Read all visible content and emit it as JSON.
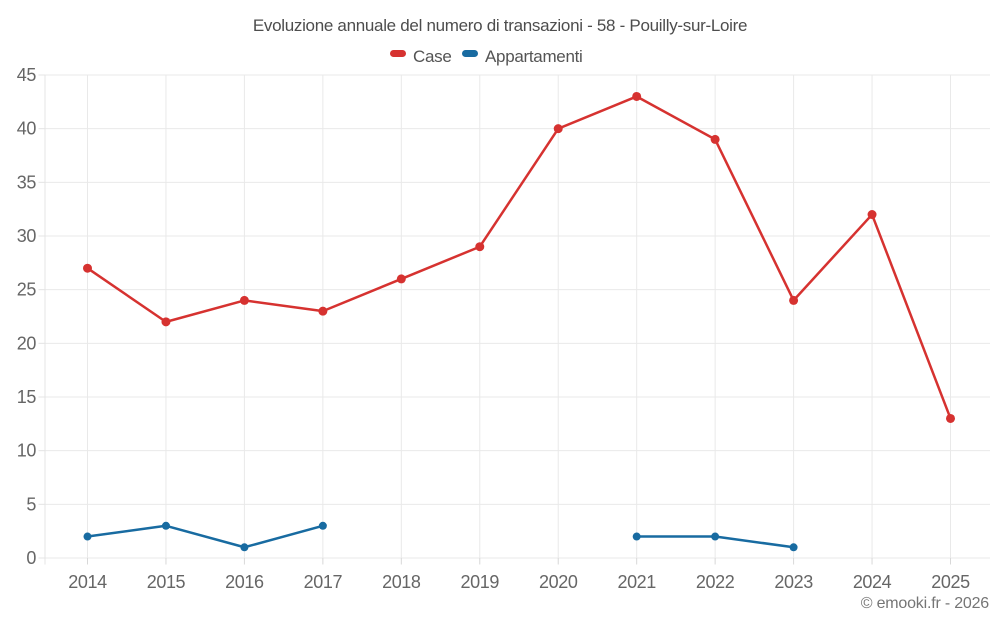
{
  "page": {
    "footer": "© emooki.fr - 2026"
  },
  "chart_data": {
    "type": "line",
    "title": "Evoluzione annuale del numero di transazioni - 58 - Pouilly-sur-Loire",
    "categories": [
      "2014",
      "2015",
      "2016",
      "2017",
      "2018",
      "2019",
      "2020",
      "2021",
      "2022",
      "2023",
      "2024",
      "2025"
    ],
    "series": [
      {
        "name": "Case",
        "color": "#d63230",
        "values": [
          27,
          22,
          24,
          23,
          26,
          29,
          40,
          43,
          39,
          24,
          32,
          13
        ]
      },
      {
        "name": "Appartamenti",
        "color": "#186ba1",
        "values": [
          2,
          3,
          1,
          3,
          null,
          null,
          null,
          2,
          2,
          1,
          null,
          null
        ]
      }
    ],
    "ylim": [
      0,
      45
    ],
    "ytick_step": 5,
    "ytick_labels": [
      "0",
      "5",
      "10",
      "15",
      "20",
      "25",
      "30",
      "35",
      "40",
      "45"
    ],
    "xlabel": "",
    "ylabel": "",
    "grid": true,
    "legend_position": "top"
  }
}
